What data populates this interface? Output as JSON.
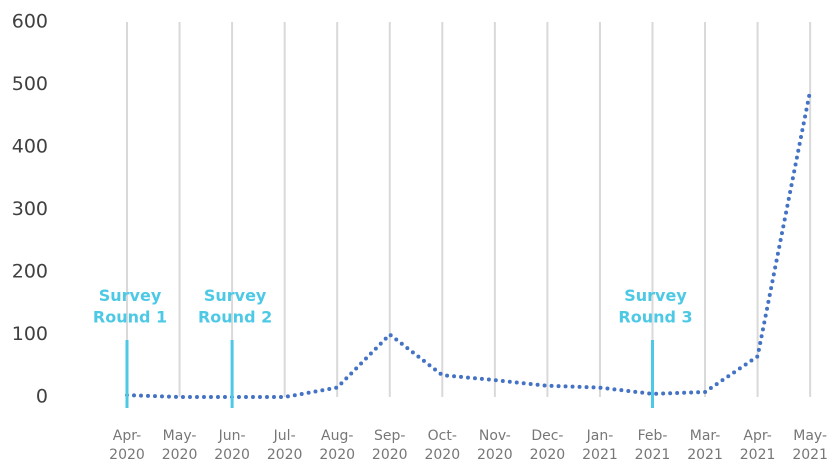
{
  "chart_data": {
    "type": "line",
    "categories": [
      "Apr-2020",
      "May-2020",
      "Jun-2020",
      "Jul-2020",
      "Aug-2020",
      "Sep-2020",
      "Oct-2020",
      "Nov-2020",
      "Dec-2020",
      "Jan-2021",
      "Feb-2021",
      "Mar-2021",
      "Apr-2021",
      "May-2021"
    ],
    "series": [
      {
        "color": "#4472c4",
        "values": [
          3,
          0,
          0,
          0,
          15,
          100,
          35,
          27,
          18,
          15,
          5,
          8,
          65,
          490
        ]
      }
    ],
    "ylim": [
      0,
      600
    ],
    "yticks": [
      0,
      100,
      200,
      300,
      400,
      500,
      600
    ],
    "grid": true,
    "annotations": [
      {
        "text": "Survey Round 1",
        "category": "Apr-2020"
      },
      {
        "text": "Survey Round 2",
        "category": "Jun-2020"
      },
      {
        "text": "Survey Round 3",
        "category": "Feb-2021"
      }
    ],
    "annotation_color": "#4dc9e6"
  }
}
